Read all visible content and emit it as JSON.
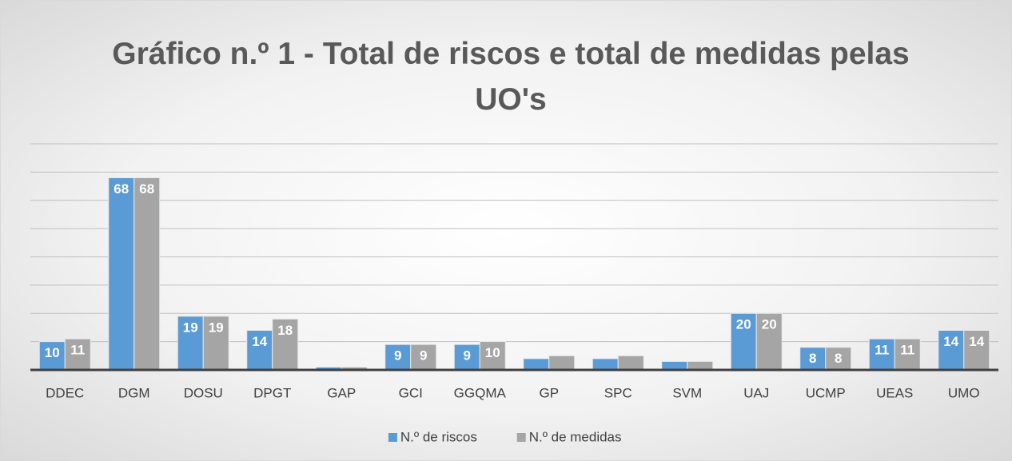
{
  "chart_data": {
    "type": "bar",
    "title": "Gráfico n.º 1 - Total de riscos e total de medidas pelas UO's",
    "categories": [
      "DDEC",
      "DGM",
      "DOSU",
      "DPGT",
      "GAP",
      "GCI",
      "GGQMA",
      "GP",
      "SPC",
      "SVM",
      "UAJ",
      "UCMP",
      "UEAS",
      "UMO"
    ],
    "series": [
      {
        "name": "N.º de riscos",
        "color": "#5b9bd5",
        "values": [
          10,
          68,
          19,
          14,
          1,
          9,
          9,
          4,
          4,
          3,
          20,
          8,
          11,
          14
        ],
        "value_labels": [
          "10",
          "68",
          "19",
          "14",
          null,
          "9",
          "9",
          null,
          null,
          null,
          "20",
          "8",
          "11",
          "14"
        ]
      },
      {
        "name": "N.º de medidas",
        "color": "#a5a5a5",
        "values": [
          11,
          68,
          19,
          18,
          1,
          9,
          10,
          5,
          5,
          3,
          20,
          8,
          11,
          14
        ],
        "value_labels": [
          "11",
          "68",
          "19",
          "18",
          null,
          "9",
          "10",
          null,
          null,
          null,
          "20",
          "8",
          "11",
          "14"
        ]
      }
    ],
    "ylim": [
      0,
      80
    ],
    "yticks": [
      0,
      10,
      20,
      30,
      40,
      50,
      60,
      70,
      80
    ],
    "grid": true,
    "legend": "bottom"
  }
}
